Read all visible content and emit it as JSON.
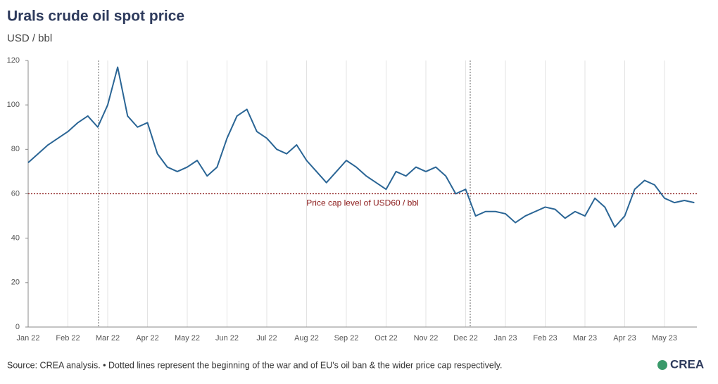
{
  "chart_data": {
    "type": "line",
    "title": "Urals crude oil spot price",
    "subtitle": "USD / bbl",
    "source": "Source: CREA analysis. • Dotted lines represent the beginning of the war and of EU's oil ban & the wider price cap respectively.",
    "logo": "CREA",
    "categories": [
      "Jan 22",
      null,
      null,
      null,
      "Feb 22",
      null,
      null,
      null,
      "Mar 22",
      null,
      null,
      null,
      "Apr 22",
      null,
      null,
      null,
      "May 22",
      null,
      null,
      null,
      "Jun 22",
      null,
      null,
      null,
      "Jul 22",
      null,
      null,
      null,
      "Aug 22",
      null,
      null,
      null,
      "Sep 22",
      null,
      null,
      null,
      "Oct 22",
      null,
      null,
      null,
      "Nov 22",
      null,
      null,
      null,
      "Dec 22",
      null,
      null,
      null,
      "Jan 23",
      null,
      null,
      null,
      "Feb 23",
      null,
      null,
      null,
      "Mar 23",
      null,
      null,
      null,
      "Apr 23",
      null,
      null,
      null,
      "May 23",
      null,
      null,
      null
    ],
    "values": [
      74,
      78,
      82,
      85,
      88,
      92,
      95,
      90,
      100,
      117,
      95,
      90,
      92,
      78,
      72,
      70,
      72,
      75,
      68,
      72,
      85,
      95,
      98,
      88,
      85,
      80,
      78,
      82,
      75,
      70,
      65,
      70,
      75,
      72,
      68,
      65,
      62,
      70,
      68,
      72,
      70,
      72,
      68,
      60,
      62,
      50,
      52,
      52,
      51,
      47,
      50,
      52,
      54,
      53,
      49,
      52,
      50,
      58,
      54,
      45,
      50,
      62,
      66,
      64,
      58,
      56,
      57,
      56
    ],
    "color": "#2a6595",
    "ylim": [
      0,
      120
    ],
    "yticks": [
      0,
      20,
      40,
      60,
      80,
      100,
      120
    ],
    "grid": "x",
    "hline": {
      "value": 60,
      "label": "Price cap level of USD60 / bbl",
      "color": "#8b1a1a"
    }
  }
}
